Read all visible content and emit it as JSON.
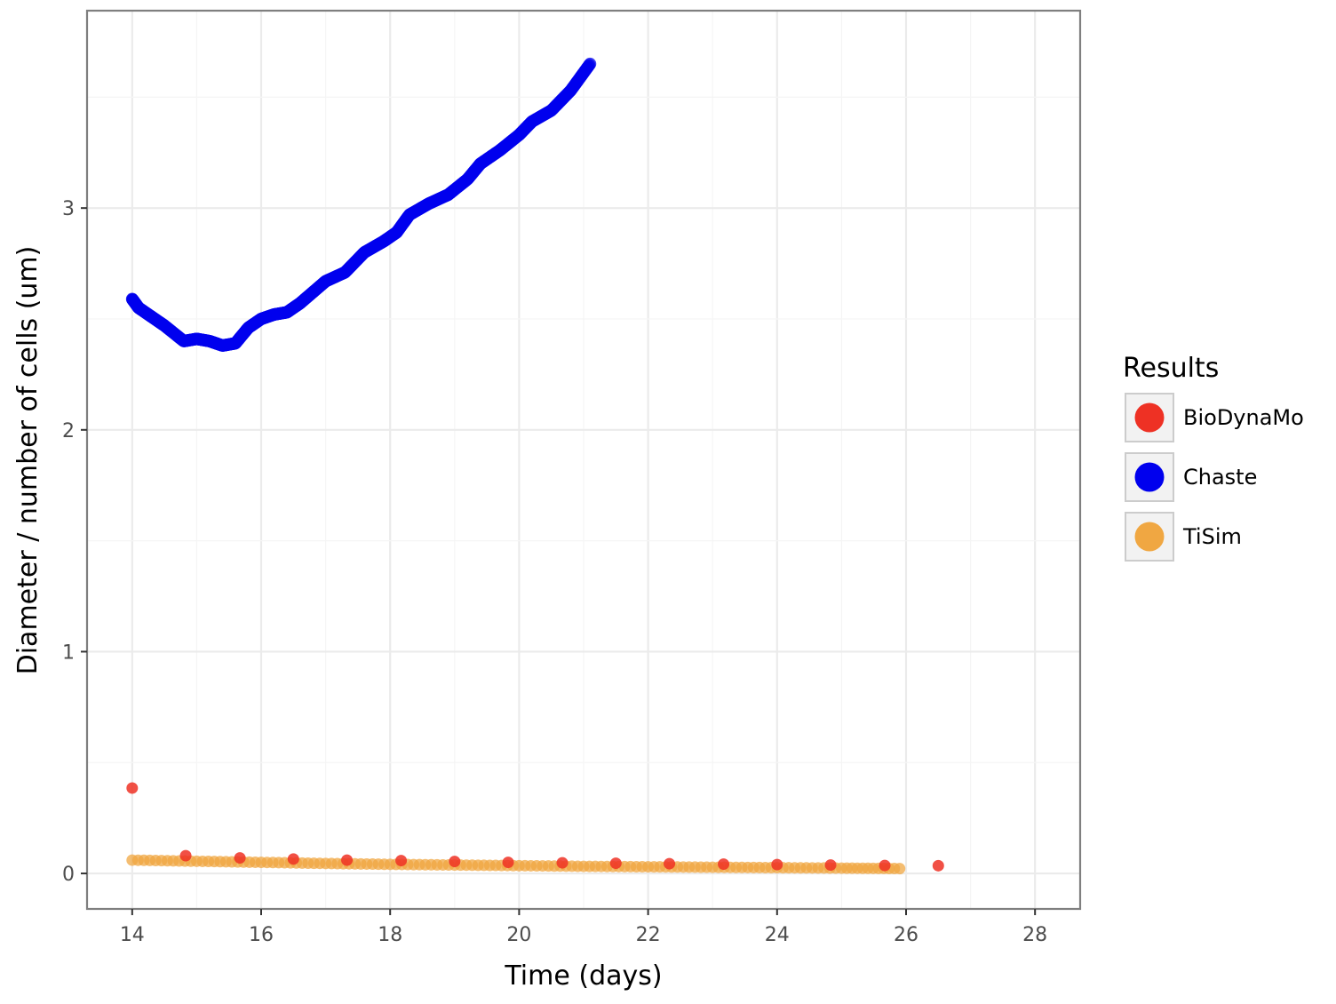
{
  "chart_data": {
    "type": "scatter",
    "xlabel": "Time (days)",
    "ylabel": "Diameter / number of cells (um)",
    "xlim": [
      13.3,
      28.7
    ],
    "ylim": [
      -0.16,
      3.89
    ],
    "x_ticks": [
      14,
      16,
      18,
      20,
      22,
      24,
      26,
      28
    ],
    "y_ticks": [
      0,
      1,
      2,
      3
    ],
    "x_tick_labels": [
      "14",
      "16",
      "18",
      "20",
      "22",
      "24",
      "26",
      "28"
    ],
    "y_tick_labels": [
      "0",
      "1",
      "2",
      "3"
    ],
    "grid": true,
    "legend": {
      "title": "Results",
      "placement": "right",
      "entries": [
        "BioDynaMo",
        "Chaste",
        "TiSim"
      ]
    },
    "series": [
      {
        "name": "BioDynaMo",
        "color": "#ee3124",
        "style": "sparse-points",
        "x": [
          14.0,
          14.83,
          15.67,
          16.5,
          17.33,
          18.17,
          19.0,
          19.83,
          20.67,
          21.5,
          22.33,
          23.17,
          24.0,
          24.83,
          25.67,
          26.5
        ],
        "y": [
          0.385,
          0.08,
          0.07,
          0.065,
          0.06,
          0.058,
          0.054,
          0.05,
          0.048,
          0.046,
          0.044,
          0.042,
          0.04,
          0.038,
          0.036,
          0.035
        ]
      },
      {
        "name": "Chaste",
        "color": "#0000ee",
        "style": "dense-points",
        "x": [
          14.0,
          14.1,
          14.3,
          14.5,
          14.8,
          15.0,
          15.2,
          15.4,
          15.6,
          15.8,
          16.0,
          16.2,
          16.4,
          16.6,
          16.8,
          17.0,
          17.3,
          17.6,
          17.9,
          18.1,
          18.3,
          18.6,
          18.9,
          19.2,
          19.4,
          19.7,
          20.0,
          20.2,
          20.5,
          20.8,
          21.1
        ],
        "y": [
          2.59,
          2.55,
          2.51,
          2.47,
          2.4,
          2.41,
          2.4,
          2.38,
          2.39,
          2.46,
          2.5,
          2.52,
          2.53,
          2.57,
          2.62,
          2.67,
          2.71,
          2.8,
          2.85,
          2.89,
          2.97,
          3.02,
          3.06,
          3.13,
          3.2,
          3.26,
          3.33,
          3.39,
          3.44,
          3.53,
          3.65
        ]
      },
      {
        "name": "TiSim",
        "color": "#f0a742",
        "style": "dense-points",
        "x": [
          14.0,
          15.0,
          16.0,
          17.0,
          18.0,
          19.0,
          20.0,
          21.0,
          22.0,
          23.0,
          24.0,
          25.0,
          25.9
        ],
        "y": [
          0.06,
          0.055,
          0.05,
          0.045,
          0.041,
          0.038,
          0.035,
          0.032,
          0.03,
          0.028,
          0.026,
          0.024,
          0.022
        ]
      }
    ]
  }
}
